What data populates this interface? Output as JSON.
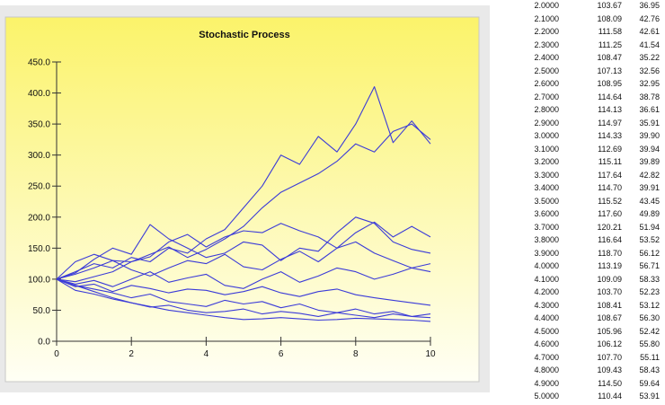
{
  "chart_data": {
    "type": "line",
    "title": "Stochastic Process",
    "xlabel": "",
    "ylabel": "",
    "xlim": [
      0,
      10
    ],
    "ylim": [
      0,
      450
    ],
    "xticks": [
      "0",
      "2",
      "4",
      "6",
      "8",
      "10"
    ],
    "yticks": [
      "0.0",
      "50.0",
      "100.0",
      "150.0",
      "200.0",
      "250.0",
      "300.0",
      "350.0",
      "400.0",
      "450.0"
    ],
    "grid": false,
    "legend": "none",
    "line_color": "#3b3bd8",
    "background": [
      "#fbf36a",
      "#fffff5"
    ],
    "series": [
      {
        "x": [
          0,
          0.5,
          1,
          1.5,
          2,
          2.5,
          3,
          3.5,
          4,
          4.5,
          5,
          5.5,
          6,
          6.5,
          7,
          7.5,
          8,
          8.5,
          9,
          9.5,
          10
        ],
        "values": [
          100,
          112,
          125,
          118,
          135,
          128,
          150,
          142,
          165,
          180,
          215,
          250,
          300,
          285,
          330,
          305,
          350,
          410,
          320,
          355,
          318
        ]
      },
      {
        "x": [
          0,
          0.5,
          1,
          1.5,
          2,
          2.5,
          3,
          3.5,
          4,
          4.5,
          5,
          5.5,
          6,
          6.5,
          7,
          7.5,
          8,
          8.5,
          9,
          9.5,
          10
        ],
        "values": [
          100,
          108,
          118,
          130,
          128,
          140,
          152,
          135,
          148,
          165,
          185,
          215,
          240,
          255,
          270,
          290,
          318,
          305,
          338,
          350,
          325
        ]
      },
      {
        "x": [
          0,
          0.5,
          1,
          1.5,
          2,
          2.5,
          3,
          3.5,
          4,
          4.5,
          5,
          5.5,
          6,
          6.5,
          7,
          7.5,
          8,
          8.5,
          9,
          9.5,
          10
        ],
        "values": [
          100,
          96,
          104,
          112,
          128,
          136,
          160,
          172,
          152,
          168,
          178,
          175,
          190,
          178,
          168,
          150,
          175,
          192,
          168,
          185,
          168
        ]
      },
      {
        "x": [
          0,
          0.5,
          1,
          1.5,
          2,
          2.5,
          3,
          3.5,
          4,
          4.5,
          5,
          5.5,
          6,
          6.5,
          7,
          7.5,
          8,
          8.5,
          9,
          9.5,
          10
        ],
        "values": [
          100,
          110,
          132,
          150,
          140,
          188,
          165,
          150,
          135,
          142,
          160,
          155,
          130,
          150,
          145,
          175,
          200,
          190,
          160,
          148,
          142
        ]
      },
      {
        "x": [
          0,
          0.5,
          1,
          1.5,
          2,
          2.5,
          3,
          3.5,
          4,
          4.5,
          5,
          5.5,
          6,
          6.5,
          7,
          7.5,
          8,
          8.5,
          9,
          9.5,
          10
        ],
        "values": [
          100,
          128,
          140,
          130,
          115,
          105,
          118,
          130,
          125,
          140,
          120,
          115,
          132,
          145,
          128,
          150,
          160,
          142,
          130,
          118,
          112
        ]
      },
      {
        "x": [
          0,
          0.5,
          1,
          1.5,
          2,
          2.5,
          3,
          3.5,
          4,
          4.5,
          5,
          5.5,
          6,
          6.5,
          7,
          7.5,
          8,
          8.5,
          9,
          9.5,
          10
        ],
        "values": [
          100,
          92,
          98,
          88,
          100,
          112,
          95,
          102,
          108,
          90,
          85,
          100,
          112,
          95,
          105,
          118,
          112,
          100,
          108,
          118,
          125
        ]
      },
      {
        "x": [
          0,
          0.5,
          1,
          1.5,
          2,
          2.5,
          3,
          3.5,
          4,
          4.5,
          5,
          5.5,
          6,
          6.5,
          7,
          7.5,
          8,
          8.5,
          9,
          9.5,
          10
        ],
        "values": [
          100,
          88,
          92,
          80,
          90,
          85,
          78,
          84,
          82,
          75,
          80,
          88,
          78,
          72,
          80,
          84,
          75,
          70,
          66,
          62,
          58
        ]
      },
      {
        "x": [
          0,
          0.5,
          1,
          1.5,
          2,
          2.5,
          3,
          3.5,
          4,
          4.5,
          5,
          5.5,
          6,
          6.5,
          7,
          7.5,
          8,
          8.5,
          9,
          9.5,
          10
        ],
        "values": [
          100,
          90,
          84,
          78,
          70,
          76,
          64,
          60,
          56,
          66,
          60,
          64,
          54,
          60,
          50,
          46,
          52,
          44,
          48,
          40,
          44
        ]
      },
      {
        "x": [
          0,
          0.5,
          1,
          1.5,
          2,
          2.5,
          3,
          3.5,
          4,
          4.5,
          5,
          5.5,
          6,
          6.5,
          7,
          7.5,
          8,
          8.5,
          9,
          9.5,
          10
        ],
        "values": [
          100,
          82,
          76,
          68,
          62,
          55,
          58,
          50,
          46,
          48,
          52,
          44,
          48,
          45,
          40,
          46,
          42,
          38,
          44,
          40,
          38
        ]
      },
      {
        "x": [
          0,
          0.5,
          1,
          1.5,
          2,
          2.5,
          3,
          3.5,
          4,
          4.5,
          5,
          5.5,
          6,
          6.5,
          7,
          7.5,
          8,
          8.5,
          9,
          9.5,
          10
        ],
        "values": [
          100,
          90,
          80,
          70,
          62,
          56,
          50,
          46,
          42,
          38,
          35,
          36,
          38,
          36,
          34,
          35,
          37,
          36,
          35,
          34,
          32
        ]
      }
    ]
  },
  "table": {
    "rows": [
      [
        "2.0000",
        "103.67",
        "36.95"
      ],
      [
        "2.1000",
        "108.09",
        "42.76"
      ],
      [
        "2.2000",
        "111.58",
        "42.61"
      ],
      [
        "2.3000",
        "111.25",
        "41.54"
      ],
      [
        "2.4000",
        "108.47",
        "35.22"
      ],
      [
        "2.5000",
        "107.13",
        "32.56"
      ],
      [
        "2.6000",
        "108.95",
        "32.95"
      ],
      [
        "2.7000",
        "114.64",
        "38.78"
      ],
      [
        "2.8000",
        "114.13",
        "36.61"
      ],
      [
        "2.9000",
        "114.97",
        "35.91"
      ],
      [
        "3.0000",
        "114.33",
        "39.90"
      ],
      [
        "3.1000",
        "112.69",
        "39.94"
      ],
      [
        "3.2000",
        "115.11",
        "39.89"
      ],
      [
        "3.3000",
        "117.64",
        "42.82"
      ],
      [
        "3.4000",
        "114.70",
        "39.91"
      ],
      [
        "3.5000",
        "115.52",
        "43.45"
      ],
      [
        "3.6000",
        "117.60",
        "49.89"
      ],
      [
        "3.7000",
        "120.21",
        "51.94"
      ],
      [
        "3.8000",
        "116.64",
        "53.52"
      ],
      [
        "3.9000",
        "118.70",
        "56.12"
      ],
      [
        "4.0000",
        "113.19",
        "56.71"
      ],
      [
        "4.1000",
        "109.09",
        "58.33"
      ],
      [
        "4.2000",
        "103.70",
        "52.23"
      ],
      [
        "4.3000",
        "108.41",
        "53.12"
      ],
      [
        "4.4000",
        "108.67",
        "56.30"
      ],
      [
        "4.5000",
        "105.96",
        "52.42"
      ],
      [
        "4.6000",
        "106.12",
        "55.80"
      ],
      [
        "4.7000",
        "107.70",
        "55.11"
      ],
      [
        "4.8000",
        "109.43",
        "58.43"
      ],
      [
        "4.9000",
        "114.50",
        "59.64"
      ],
      [
        "5.0000",
        "110.44",
        "53.91"
      ]
    ]
  }
}
